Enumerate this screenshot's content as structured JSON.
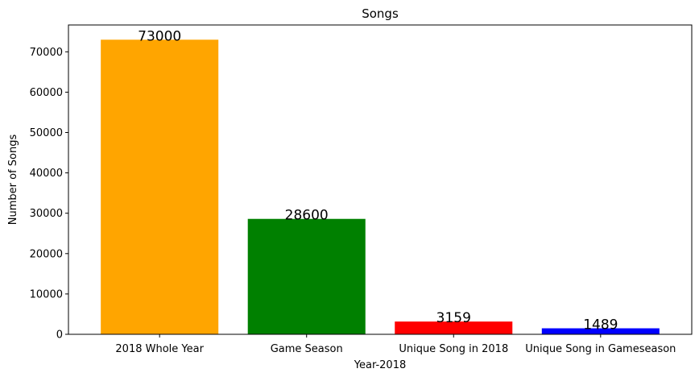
{
  "chart_data": {
    "type": "bar",
    "title": "Songs",
    "xlabel": "Year-2018",
    "ylabel": "Number of Songs",
    "categories": [
      "2018 Whole Year",
      "Game Season",
      "Unique Song in 2018",
      "Unique Song in Gameseason"
    ],
    "values": [
      73000,
      28600,
      3159,
      1489
    ],
    "data_labels": [
      "73000",
      "28600",
      "3159",
      "1489"
    ],
    "colors": [
      "#FFA500",
      "#008000",
      "#FF0000",
      "#0000FF"
    ],
    "ylim": [
      0,
      76650
    ],
    "yticks": [
      0,
      10000,
      20000,
      30000,
      40000,
      50000,
      60000,
      70000
    ],
    "ytick_labels": [
      "0",
      "10000",
      "20000",
      "30000",
      "40000",
      "50000",
      "60000",
      "70000"
    ],
    "grid": false,
    "legend": "none"
  }
}
